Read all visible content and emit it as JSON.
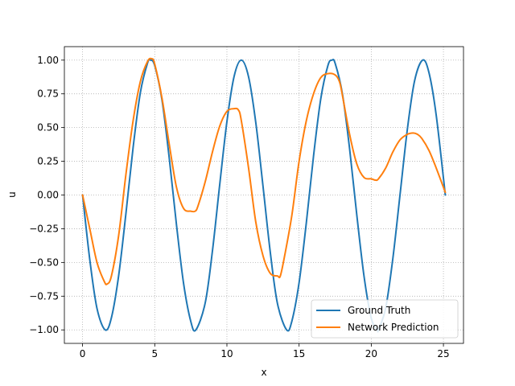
{
  "chart_data": {
    "type": "line",
    "title": "",
    "xlabel": "x",
    "ylabel": "u",
    "xlim": [
      -1.26,
      26.39
    ],
    "ylim": [
      -1.1,
      1.1
    ],
    "x_ticks": [
      0,
      5,
      10,
      15,
      20,
      25
    ],
    "y_ticks": [
      -1.0,
      -0.75,
      -0.5,
      -0.25,
      0.0,
      0.25,
      0.5,
      0.75,
      1.0
    ],
    "x_tick_labels": [
      "0",
      "5",
      "10",
      "15",
      "20",
      "25"
    ],
    "y_tick_labels": [
      "−1.00",
      "−0.75",
      "−0.50",
      "−0.25",
      "0.00",
      "0.25",
      "0.50",
      "0.75",
      "1.00"
    ],
    "grid": true,
    "legend_position": "lower right",
    "series": [
      {
        "name": "Ground Truth",
        "color": "#1f77b4",
        "x": [
          0,
          0.5,
          1.0,
          1.57,
          2.0,
          2.5,
          3.0,
          3.5,
          4.0,
          4.5,
          4.71,
          5.0,
          5.5,
          6.0,
          6.5,
          7.0,
          7.5,
          7.85,
          8.5,
          9.0,
          9.5,
          10.0,
          10.5,
          11.0,
          11.5,
          12.0,
          12.5,
          13.0,
          13.5,
          14.14,
          14.5,
          15.0,
          15.5,
          16.0,
          16.5,
          17.0,
          17.28,
          17.5,
          18.0,
          18.5,
          19.0,
          19.5,
          20.0,
          20.42,
          20.5,
          21.0,
          21.5,
          22.0,
          22.5,
          23.0,
          23.56,
          24.0,
          24.5,
          25.13
        ],
        "y": [
          0,
          -0.479,
          -0.841,
          -1.0,
          -0.909,
          -0.598,
          -0.141,
          0.351,
          0.757,
          0.978,
          1.0,
          0.959,
          0.706,
          0.279,
          -0.215,
          -0.657,
          -0.938,
          -1.0,
          -0.798,
          -0.412,
          0.075,
          0.544,
          0.88,
          1.0,
          0.876,
          0.537,
          0.066,
          -0.42,
          -0.804,
          -1.0,
          -0.935,
          -0.65,
          -0.207,
          0.288,
          0.712,
          0.961,
          1.0,
          0.976,
          0.751,
          0.342,
          -0.15,
          -0.603,
          -0.913,
          -1.0,
          -0.997,
          -0.837,
          -0.467,
          0.009,
          0.487,
          0.846,
          1.0,
          0.906,
          0.591,
          0.0
        ]
      },
      {
        "name": "Network Prediction",
        "color": "#ff7f0e",
        "x": [
          0,
          0.5,
          1.0,
          1.5,
          1.7,
          2.0,
          2.5,
          3.0,
          3.5,
          4.0,
          4.5,
          4.8,
          5.0,
          5.5,
          6.0,
          6.5,
          7.0,
          7.5,
          7.8,
          8.0,
          8.5,
          9.0,
          9.5,
          10.0,
          10.5,
          10.8,
          11.0,
          11.5,
          12.0,
          12.5,
          13.0,
          13.5,
          13.7,
          14.0,
          14.5,
          15.0,
          15.5,
          16.0,
          16.5,
          17.0,
          17.5,
          17.8,
          18.0,
          18.5,
          19.0,
          19.5,
          20.0,
          20.3,
          20.5,
          21.0,
          21.5,
          22.0,
          22.5,
          22.9,
          23.2,
          23.5,
          24.0,
          24.5,
          25.13
        ],
        "y": [
          0.0,
          -0.25,
          -0.5,
          -0.64,
          -0.66,
          -0.6,
          -0.3,
          0.15,
          0.55,
          0.84,
          0.99,
          1.01,
          0.97,
          0.72,
          0.38,
          0.06,
          -0.1,
          -0.12,
          -0.12,
          -0.08,
          0.1,
          0.32,
          0.51,
          0.62,
          0.64,
          0.63,
          0.55,
          0.2,
          -0.2,
          -0.45,
          -0.58,
          -0.6,
          -0.6,
          -0.45,
          -0.15,
          0.25,
          0.55,
          0.75,
          0.87,
          0.9,
          0.89,
          0.84,
          0.74,
          0.45,
          0.23,
          0.13,
          0.12,
          0.11,
          0.12,
          0.2,
          0.32,
          0.41,
          0.45,
          0.46,
          0.45,
          0.42,
          0.33,
          0.2,
          0.02
        ]
      }
    ]
  }
}
